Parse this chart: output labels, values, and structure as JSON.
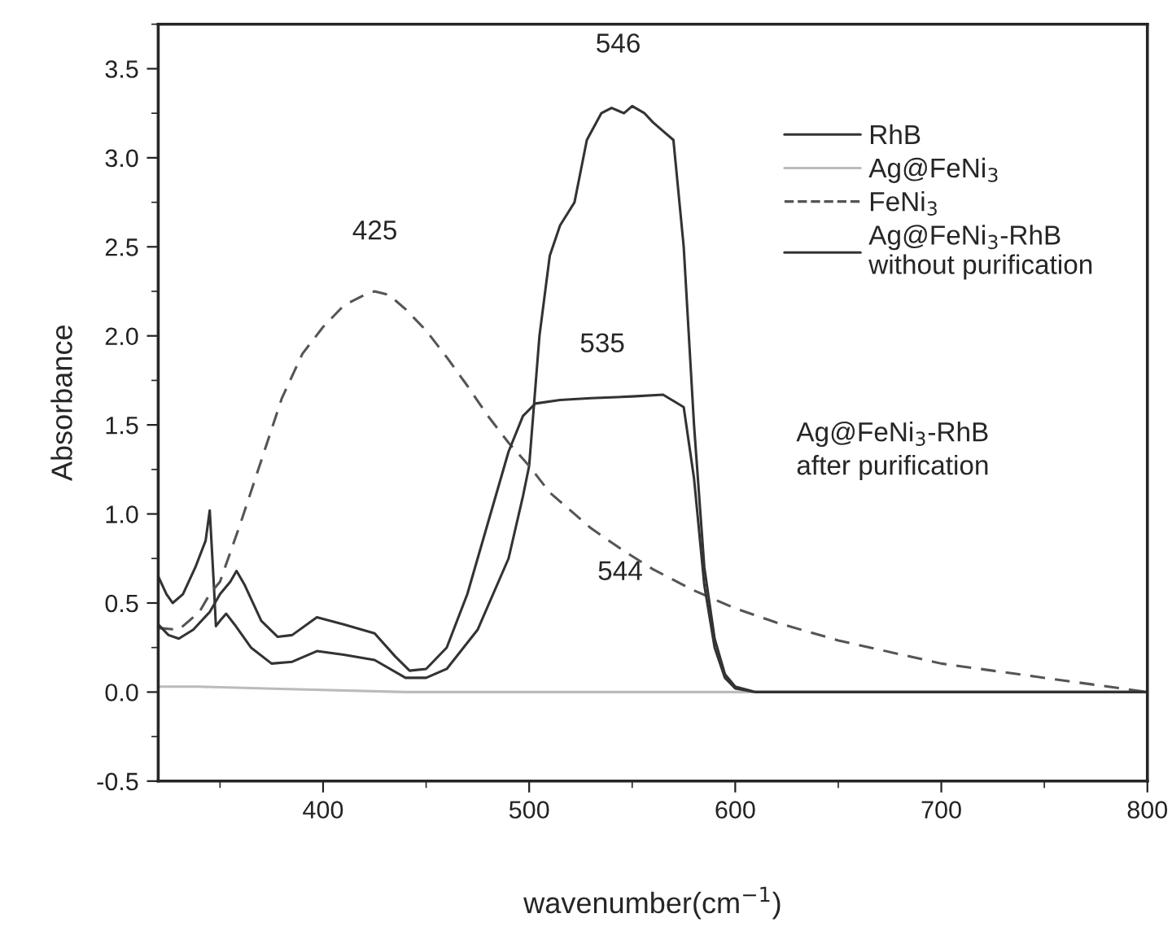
{
  "chart_data": {
    "type": "line",
    "xlabel": "wavenumber(cm$^{−1}$)",
    "ylabel": "Absorbance",
    "xlim": [
      320,
      800
    ],
    "xticks": [
      400,
      500,
      600,
      700,
      800
    ],
    "ylim": [
      -0.5,
      3.75
    ],
    "yticks": [
      -0.5,
      {
        "value": 0,
        "label": "0.0"
      },
      0.5,
      {
        "value": 1,
        "label": "1.0"
      },
      1.5,
      {
        "value": 2,
        "label": "2.0"
      },
      2.5,
      {
        "value": 3,
        "label": "3.0"
      },
      3.5
    ],
    "grid": false,
    "legend": "top right",
    "marker": "none",
    "series": [
      {
        "name": "RhB",
        "color": "#333333",
        "line_style": "solid",
        "x": [
          320,
          324,
          327,
          332,
          338,
          343,
          345,
          347,
          348,
          350,
          353,
          357,
          365,
          375,
          385,
          397,
          410,
          425,
          440,
          450,
          460,
          475,
          490,
          497,
          500,
          505,
          510,
          515,
          522,
          528,
          535,
          540,
          546,
          550,
          556,
          560,
          565,
          570,
          575,
          580,
          585,
          590,
          595,
          600,
          610,
          800
        ],
        "values": [
          0.65,
          0.55,
          0.5,
          0.55,
          0.7,
          0.85,
          1.02,
          0.6,
          0.37,
          0.4,
          0.44,
          0.38,
          0.25,
          0.16,
          0.17,
          0.23,
          0.21,
          0.18,
          0.08,
          0.08,
          0.13,
          0.35,
          0.75,
          1.1,
          1.27,
          2.0,
          2.45,
          2.62,
          2.75,
          3.1,
          3.25,
          3.28,
          3.25,
          3.29,
          3.25,
          3.2,
          3.15,
          3.1,
          2.5,
          1.5,
          0.7,
          0.3,
          0.1,
          0.03,
          0.0,
          0.0
        ]
      },
      {
        "name": "Ag@FeNi$_{3}$",
        "color": "#bbbbbb",
        "line_style": "solid",
        "x": [
          320,
          340,
          372,
          440,
          520,
          600,
          800
        ],
        "values": [
          0.03,
          0.03,
          0.02,
          0.0,
          0.0,
          0.0,
          0.0
        ]
      },
      {
        "name": "FeNi$_{3}$",
        "color": "#555555",
        "line_style": "dashed",
        "x": [
          320,
          330,
          340,
          345,
          350,
          360,
          370,
          380,
          390,
          400,
          410,
          420,
          425,
          432,
          440,
          450,
          460,
          470,
          480,
          490,
          500,
          510,
          520,
          530,
          545,
          560,
          580,
          600,
          620,
          650,
          700,
          750,
          800
        ],
        "values": [
          0.36,
          0.35,
          0.45,
          0.55,
          0.62,
          0.95,
          1.3,
          1.65,
          1.9,
          2.05,
          2.17,
          2.23,
          2.25,
          2.23,
          2.15,
          2.03,
          1.88,
          1.72,
          1.55,
          1.4,
          1.27,
          1.12,
          1.02,
          0.92,
          0.8,
          0.69,
          0.57,
          0.47,
          0.39,
          0.29,
          0.16,
          0.08,
          0.0
        ]
      },
      {
        "name": "Ag@FeNi$_{3}$-RhB\nwithout purification",
        "color": "#333333",
        "line_style": "solid",
        "x": [
          320,
          325,
          330,
          337,
          345,
          350,
          355,
          358,
          362,
          370,
          378,
          385,
          397,
          410,
          425,
          435,
          442,
          450,
          460,
          470,
          480,
          490,
          497,
          503,
          515,
          530,
          550,
          565,
          575,
          580,
          585,
          590,
          595,
          600,
          610,
          800
        ],
        "values": [
          0.38,
          0.32,
          0.3,
          0.35,
          0.45,
          0.55,
          0.62,
          0.68,
          0.6,
          0.4,
          0.31,
          0.32,
          0.42,
          0.38,
          0.33,
          0.2,
          0.12,
          0.13,
          0.25,
          0.55,
          0.95,
          1.35,
          1.55,
          1.62,
          1.64,
          1.65,
          1.66,
          1.67,
          1.6,
          1.2,
          0.6,
          0.25,
          0.08,
          0.02,
          0.0,
          0.0
        ]
      }
    ],
    "annotations": [
      "425",
      "546",
      "535",
      "544",
      "Ag@FeNi$_{3}$-RhB\nafter purification"
    ]
  }
}
